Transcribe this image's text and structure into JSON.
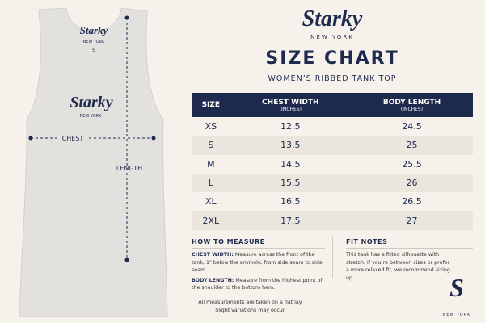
{
  "garment": {
    "tag_brand": "Starky",
    "tag_city": "NEW YORK",
    "tag_size": "S",
    "print_brand": "Starky",
    "print_city": "NEW YORK",
    "chest_label": "CHEST",
    "length_label": "LENGTH"
  },
  "header": {
    "brand": "Starky",
    "city": "NEW YORK",
    "title": "SIZE CHART",
    "subtitle": "WOMEN’S RIBBED TANK TOP"
  },
  "table": {
    "columns": [
      {
        "label": "SIZE"
      },
      {
        "label": "CHEST WIDTH",
        "unit": "(INCHES)"
      },
      {
        "label": "BODY LENGTH",
        "unit": "(INCHES)"
      }
    ],
    "rows": [
      [
        "XS",
        12.5,
        24.5
      ],
      [
        "S",
        13.5,
        25
      ],
      [
        "M",
        14.5,
        25.5
      ],
      [
        "L",
        15.5,
        26
      ],
      [
        "XL",
        16.5,
        26.5
      ],
      [
        "2XL",
        17.5,
        27
      ]
    ]
  },
  "how_to_measure": {
    "title": "HOW TO MEASURE",
    "items": [
      {
        "term": "CHEST WIDTH:",
        "text": "Measure across the front of the tank, 1\" below the armhole, from side seam to side seam."
      },
      {
        "term": "BODY LENGTH:",
        "text": "Measure from the highest point of the shoulder to the bottom hem."
      }
    ]
  },
  "fit_notes": {
    "title": "FIT NOTES",
    "text": "This tank has a fitted silhouette with stretch. If you’re between sizes or prefer a more relaxed fit, we recommend sizing up."
  },
  "footnote": [
    "All measurements are taken on a flat lay.",
    "Slight variations may occur."
  ],
  "footer_logo": {
    "mark": "S",
    "city": "NEW YORK"
  }
}
